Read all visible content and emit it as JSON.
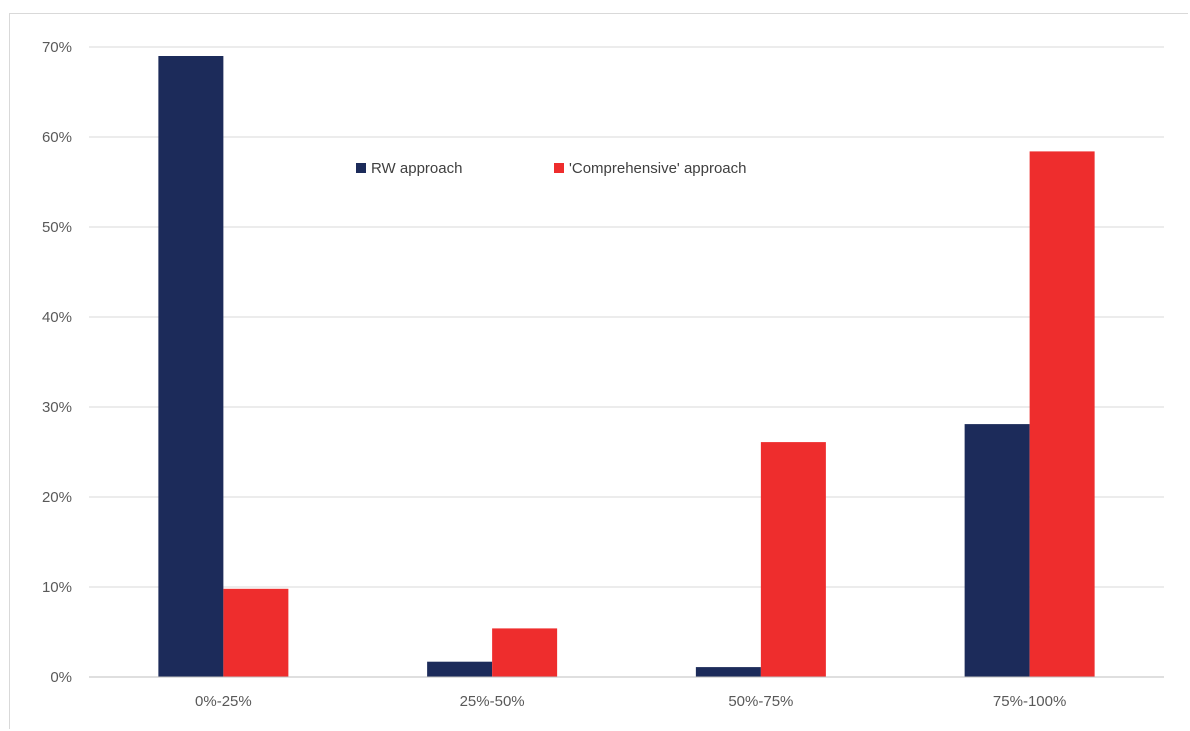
{
  "chart_data": {
    "type": "bar",
    "categories": [
      "0%-25%",
      "25%-50%",
      "50%-75%",
      "75%-100%"
    ],
    "series": [
      {
        "name": "RW approach",
        "values": [
          69,
          1.7,
          1.1,
          28.1
        ],
        "color": "#1c2b5a"
      },
      {
        "name": "'Comprehensive' approach",
        "values": [
          9.8,
          5.4,
          26.1,
          58.4
        ],
        "color": "#ee2d2d"
      }
    ],
    "title": "",
    "xlabel": "",
    "ylabel": "",
    "ylim": [
      0,
      70
    ],
    "y_ticks": [
      "0%",
      "10%",
      "20%",
      "30%",
      "40%",
      "50%",
      "60%",
      "70%"
    ],
    "grid": true,
    "legend_position": "top-center"
  }
}
